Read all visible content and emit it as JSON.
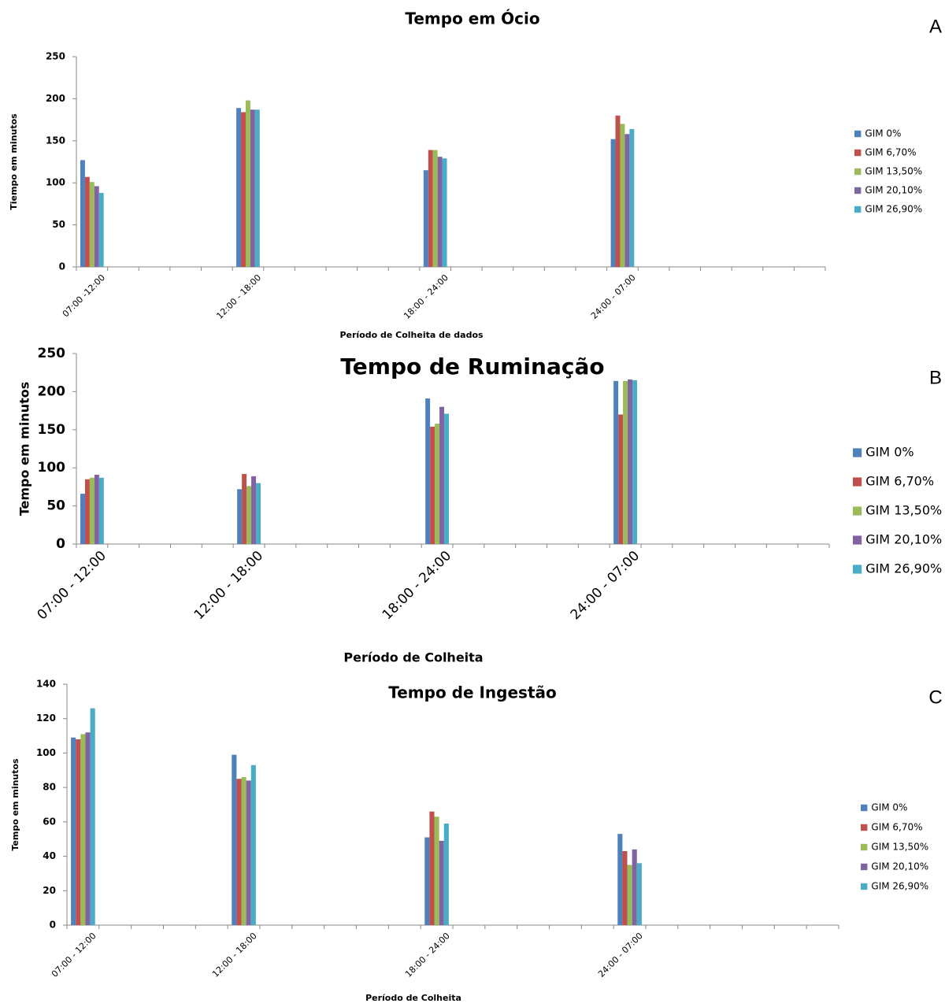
{
  "chart_data": [
    {
      "type": "bar",
      "title": "Tempo em Ócio",
      "panel_label": "A",
      "xlabel": "Período de Colheita de dados",
      "ylabel": "Tiempo em minutos",
      "categories": [
        "07:00 -12:00",
        null,
        null,
        null,
        null,
        "12:00 - 18:00",
        null,
        null,
        null,
        null,
        null,
        "18:00 - 24:00",
        null,
        null,
        null,
        null,
        null,
        "24:00 - 07:00",
        null,
        null,
        null,
        null,
        null,
        null
      ],
      "series": [
        {
          "name": "GIM 0%",
          "color": "#4f81bd",
          "values": [
            127,
            null,
            null,
            null,
            null,
            189,
            null,
            null,
            null,
            null,
            null,
            115,
            null,
            null,
            null,
            null,
            null,
            152,
            null,
            null,
            null,
            null,
            null,
            null
          ]
        },
        {
          "name": "GIM 6,70%",
          "color": "#c0504d",
          "values": [
            107,
            null,
            null,
            null,
            null,
            184,
            null,
            null,
            null,
            null,
            null,
            139,
            null,
            null,
            null,
            null,
            null,
            180,
            null,
            null,
            null,
            null,
            null,
            null
          ]
        },
        {
          "name": "GIM 13,50%",
          "color": "#9bbb59",
          "values": [
            101,
            null,
            null,
            null,
            null,
            198,
            null,
            null,
            null,
            null,
            null,
            139,
            null,
            null,
            null,
            null,
            null,
            170,
            null,
            null,
            null,
            null,
            null,
            null
          ]
        },
        {
          "name": "GIM 20,10%",
          "color": "#8064a2",
          "values": [
            96,
            null,
            null,
            null,
            null,
            187,
            null,
            null,
            null,
            null,
            null,
            131,
            null,
            null,
            null,
            null,
            null,
            158,
            null,
            null,
            null,
            null,
            null,
            null
          ]
        },
        {
          "name": "GIM 26,90%",
          "color": "#4bacc6",
          "values": [
            88,
            null,
            null,
            null,
            null,
            187,
            null,
            null,
            null,
            null,
            null,
            129,
            null,
            null,
            null,
            null,
            null,
            164,
            null,
            null,
            null,
            null,
            null,
            null
          ]
        }
      ],
      "ylim": [
        0,
        250
      ],
      "yticks": [
        0,
        50,
        100,
        150,
        200,
        250
      ],
      "legend": "right"
    },
    {
      "type": "bar",
      "title": "Tempo de Ruminação",
      "panel_label": "B",
      "xlabel": "Período de Colheita",
      "ylabel": "Tempo em minutos",
      "categories": [
        "07:00 - 12:00",
        null,
        null,
        null,
        null,
        "12:00 - 18:00",
        null,
        null,
        null,
        null,
        null,
        "18:00 - 24:00",
        null,
        null,
        null,
        null,
        null,
        "24:00 - 07:00",
        null,
        null,
        null,
        null,
        null,
        null
      ],
      "series": [
        {
          "name": "GIM 0%",
          "color": "#4f81bd",
          "values": [
            66,
            null,
            null,
            null,
            null,
            72,
            null,
            null,
            null,
            null,
            null,
            191,
            null,
            null,
            null,
            null,
            null,
            214,
            null,
            null,
            null,
            null,
            null,
            null
          ]
        },
        {
          "name": "GIM 6,70%",
          "color": "#c0504d",
          "values": [
            85,
            null,
            null,
            null,
            null,
            92,
            null,
            null,
            null,
            null,
            null,
            154,
            null,
            null,
            null,
            null,
            null,
            170,
            null,
            null,
            null,
            null,
            null,
            null
          ]
        },
        {
          "name": "GIM 13,50%",
          "color": "#9bbb59",
          "values": [
            87,
            null,
            null,
            null,
            null,
            76,
            null,
            null,
            null,
            null,
            null,
            158,
            null,
            null,
            null,
            null,
            null,
            214,
            null,
            null,
            null,
            null,
            null,
            null
          ]
        },
        {
          "name": "GIM 20,10%",
          "color": "#8064a2",
          "values": [
            91,
            null,
            null,
            null,
            null,
            89,
            null,
            null,
            null,
            null,
            null,
            180,
            null,
            null,
            null,
            null,
            null,
            216,
            null,
            null,
            null,
            null,
            null,
            null
          ]
        },
        {
          "name": "GIM 26,90%",
          "color": "#4bacc6",
          "values": [
            87,
            null,
            null,
            null,
            null,
            80,
            null,
            null,
            null,
            null,
            null,
            171,
            null,
            null,
            null,
            null,
            null,
            215,
            null,
            null,
            null,
            null,
            null,
            null
          ]
        }
      ],
      "ylim": [
        0,
        250
      ],
      "yticks": [
        0,
        50,
        100,
        150,
        200,
        250
      ],
      "legend": "right"
    },
    {
      "type": "bar",
      "title": "Tempo de Ingestão",
      "panel_label": "C",
      "xlabel": "Período de Colheita",
      "ylabel": "Tempo em minutos",
      "categories": [
        "07:00 - 12:00",
        null,
        null,
        null,
        null,
        "12:00 - 18:00",
        null,
        null,
        null,
        null,
        null,
        "18:00 - 24:00",
        null,
        null,
        null,
        null,
        null,
        "24:00 - 07:00",
        null,
        null,
        null,
        null,
        null,
        null
      ],
      "series": [
        {
          "name": "GIM 0%",
          "color": "#4f81bd",
          "values": [
            109,
            null,
            null,
            null,
            null,
            99,
            null,
            null,
            null,
            null,
            null,
            51,
            null,
            null,
            null,
            null,
            null,
            53,
            null,
            null,
            null,
            null,
            null,
            null
          ]
        },
        {
          "name": "GIM 6,70%",
          "color": "#c0504d",
          "values": [
            108,
            null,
            null,
            null,
            null,
            85,
            null,
            null,
            null,
            null,
            null,
            66,
            null,
            null,
            null,
            null,
            null,
            43,
            null,
            null,
            null,
            null,
            null,
            null
          ]
        },
        {
          "name": "GIM 13,50%",
          "color": "#9bbb59",
          "values": [
            111,
            null,
            null,
            null,
            null,
            86,
            null,
            null,
            null,
            null,
            null,
            63,
            null,
            null,
            null,
            null,
            null,
            35,
            null,
            null,
            null,
            null,
            null,
            null
          ]
        },
        {
          "name": "GIM 20,10%",
          "color": "#8064a2",
          "values": [
            112,
            null,
            null,
            null,
            null,
            84,
            null,
            null,
            null,
            null,
            null,
            49,
            null,
            null,
            null,
            null,
            null,
            44,
            null,
            null,
            null,
            null,
            null,
            null
          ]
        },
        {
          "name": "GIM 26,90%",
          "color": "#4bacc6",
          "values": [
            126,
            null,
            null,
            null,
            null,
            93,
            null,
            null,
            null,
            null,
            null,
            59,
            null,
            null,
            null,
            null,
            null,
            36,
            null,
            null,
            null,
            null,
            null,
            null
          ]
        }
      ],
      "ylim": [
        0,
        140
      ],
      "yticks": [
        0,
        20,
        40,
        60,
        80,
        100,
        120,
        140
      ],
      "legend": "right"
    }
  ]
}
